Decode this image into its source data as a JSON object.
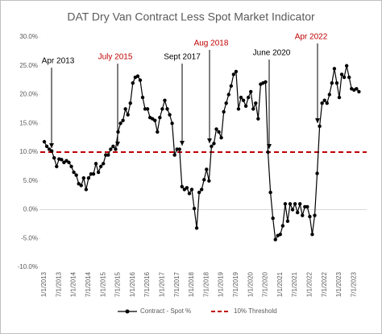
{
  "chart_data": {
    "type": "line",
    "title": "DAT Dry Van Contract Less Spot Market Indicator",
    "categories": [
      "1/1/2013",
      null,
      null,
      null,
      null,
      null,
      "7/1/2013",
      null,
      null,
      null,
      null,
      null,
      "1/1/2014",
      null,
      null,
      null,
      null,
      null,
      "7/1/2014",
      null,
      null,
      null,
      null,
      null,
      "1/1/2015",
      null,
      null,
      null,
      null,
      null,
      "7/1/2015",
      null,
      null,
      null,
      null,
      null,
      "1/1/2016",
      null,
      null,
      null,
      null,
      null,
      "7/1/2016",
      null,
      null,
      null,
      null,
      null,
      "1/1/2017",
      null,
      null,
      null,
      null,
      null,
      "7/1/2017",
      null,
      null,
      null,
      null,
      null,
      "1/1/2018",
      null,
      null,
      null,
      null,
      null,
      "7/1/2018",
      null,
      null,
      null,
      null,
      null,
      "1/1/2019",
      null,
      null,
      null,
      null,
      null,
      "7/1/2019",
      null,
      null,
      null,
      null,
      null,
      "1/1/2020",
      null,
      null,
      null,
      null,
      null,
      "7/1/2020",
      null,
      null,
      null,
      null,
      null,
      "1/1/2021",
      null,
      null,
      null,
      null,
      null,
      "7/1/2021",
      null,
      null,
      null,
      null,
      null,
      "1/1/2022",
      null,
      null,
      null,
      null,
      null,
      "7/1/2022",
      null,
      null,
      null,
      null,
      null,
      "1/1/2023",
      null,
      null,
      null,
      null,
      null,
      "7/1/2023",
      null,
      null
    ],
    "series": [
      {
        "name": "Contract - Spot %",
        "color": "#000000",
        "values": [
          11.8,
          11,
          10.5,
          10.2,
          9,
          7.5,
          8.8,
          8.7,
          8.2,
          8.5,
          8.2,
          7.5,
          6.5,
          6,
          4.5,
          4.2,
          5.5,
          3.5,
          5.5,
          6.2,
          6.2,
          8,
          6.5,
          7.5,
          8,
          9.5,
          9.5,
          10.5,
          11,
          10.5,
          13.5,
          15,
          15.5,
          17.5,
          16.5,
          18.5,
          22,
          23,
          23.2,
          22.5,
          19.5,
          17.5,
          17.5,
          16,
          15.8,
          15.5,
          13.5,
          16,
          17.5,
          19,
          17.5,
          16.5,
          15,
          9.5,
          10.5,
          10.5,
          4,
          3.5,
          3.8,
          2.8,
          3.5,
          0.2,
          -3.2,
          3,
          3.5,
          5.2,
          7,
          5,
          11,
          11.5,
          14,
          13.5,
          12.5,
          17,
          18.5,
          20,
          21.5,
          23.5,
          24,
          17.5,
          19.5,
          19,
          18,
          19.5,
          20.5,
          17.5,
          18.5,
          15.8,
          21.8,
          22,
          22.2,
          10,
          3,
          -1.5,
          -5.2,
          -4.5,
          -4.3,
          -2.8,
          1,
          -2,
          1,
          0,
          1,
          -0.5,
          1,
          -1,
          0.5,
          0.5,
          -1.2,
          -4.3,
          -1,
          6.3,
          14.5,
          18.5,
          19,
          18.5,
          20,
          22,
          24.5,
          22,
          19.5,
          23.5,
          23,
          25,
          23,
          21,
          20.8,
          21,
          20.5
        ]
      }
    ],
    "threshold": {
      "name": "10% Threshold",
      "value": 10,
      "color": "#c00000"
    },
    "ylim": [
      -10,
      30
    ],
    "yticks": [
      {
        "value": -10,
        "label": "-10.0%"
      },
      {
        "value": -5,
        "label": "-5.0%"
      },
      {
        "value": 0,
        "label": "0.0%"
      },
      {
        "value": 5,
        "label": "5.0%"
      },
      {
        "value": 10,
        "label": "10.0%"
      },
      {
        "value": 15,
        "label": "15.0%"
      },
      {
        "value": 20,
        "label": "20.0%"
      },
      {
        "value": 25,
        "label": "25.0%"
      },
      {
        "value": 30,
        "label": "30.0%"
      }
    ],
    "grid": false,
    "legend": "bottom",
    "annotations": [
      {
        "text": "Apr 2013",
        "color": "#000000"
      },
      {
        "text": "July 2015",
        "color": "#c00000"
      },
      {
        "text": "Sept 2017",
        "color": "#000000"
      },
      {
        "text": "Aug 2018",
        "color": "#c00000"
      },
      {
        "text": "June 2020",
        "color": "#000000"
      },
      {
        "text": "Apr 2022",
        "color": "#c00000"
      }
    ]
  }
}
